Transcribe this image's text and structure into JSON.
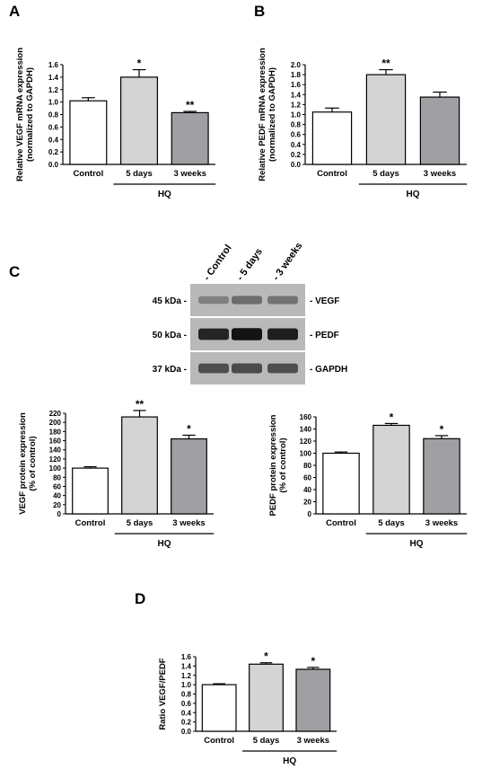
{
  "panels": {
    "A": "A",
    "B": "B",
    "C": "C",
    "D": "D"
  },
  "colors": {
    "Control": "#ffffff",
    "5 days": "#d4d4d4",
    "3 weeks": "#a0a0a4"
  },
  "chart_data": [
    {
      "id": "A",
      "type": "bar",
      "categories": [
        "Control",
        "5 days",
        "3 weeks"
      ],
      "values": [
        1.02,
        1.4,
        0.83
      ],
      "errors": [
        0.05,
        0.12,
        0.02
      ],
      "significance": [
        "",
        "*",
        "**"
      ],
      "ylabel": [
        "Relative VEGF mRNA expression",
        "(normalized to GAPDH)"
      ],
      "ylim": [
        0,
        1.6
      ],
      "yticks": [
        "0.0",
        "0.2",
        "0.4",
        "0.6",
        "0.8",
        "1.0",
        "1.2",
        "1.4",
        "1.6"
      ],
      "group_label": "HQ"
    },
    {
      "id": "B",
      "type": "bar",
      "categories": [
        "Control",
        "5 days",
        "3 weeks"
      ],
      "values": [
        1.05,
        1.8,
        1.35
      ],
      "errors": [
        0.08,
        0.1,
        0.1
      ],
      "significance": [
        "",
        "**",
        ""
      ],
      "ylabel": [
        "Relative PEDF mRNA expression",
        "(normalized to GAPDH)"
      ],
      "ylim": [
        0,
        2.0
      ],
      "yticks": [
        "0.0",
        "0.2",
        "0.4",
        "0.6",
        "0.8",
        "1.0",
        "1.2",
        "1.4",
        "1.6",
        "1.8",
        "2.0"
      ],
      "group_label": "HQ"
    },
    {
      "id": "C-VEGF",
      "type": "bar",
      "categories": [
        "Control",
        "5 days",
        "3 weeks"
      ],
      "values": [
        100,
        212,
        164
      ],
      "errors": [
        3,
        14,
        8
      ],
      "significance": [
        "",
        "**",
        "*"
      ],
      "ylabel": [
        "VEGF protein expression",
        "(% of control)"
      ],
      "ylim": [
        0,
        220
      ],
      "yticks": [
        "0",
        "20",
        "40",
        "60",
        "80",
        "100",
        "120",
        "140",
        "160",
        "180",
        "200",
        "220"
      ],
      "group_label": "HQ"
    },
    {
      "id": "C-PEDF",
      "type": "bar",
      "categories": [
        "Control",
        "5 days",
        "3 weeks"
      ],
      "values": [
        100,
        146,
        124
      ],
      "errors": [
        2,
        3,
        5
      ],
      "significance": [
        "",
        "*",
        "*"
      ],
      "ylabel": [
        "PEDF protein expression",
        "(% of control)"
      ],
      "ylim": [
        0,
        160
      ],
      "yticks": [
        "0",
        "20",
        "40",
        "60",
        "80",
        "100",
        "120",
        "140",
        "160"
      ],
      "group_label": "HQ"
    },
    {
      "id": "D",
      "type": "bar",
      "categories": [
        "Control",
        "5 days",
        "3 weeks"
      ],
      "values": [
        1.0,
        1.44,
        1.33
      ],
      "errors": [
        0.02,
        0.03,
        0.04
      ],
      "significance": [
        "",
        "*",
        "*"
      ],
      "ylabel": [
        "Ratio VEGF/PEDF"
      ],
      "ylim": [
        0,
        1.6
      ],
      "yticks": [
        "0.0",
        "0.2",
        "0.4",
        "0.6",
        "0.8",
        "1.0",
        "1.2",
        "1.4",
        "1.6"
      ],
      "group_label": "HQ"
    }
  ],
  "blot": {
    "lanes": [
      "- Control",
      "- 5 days",
      "- 3 weeks"
    ],
    "rows": [
      {
        "marker": "45 kDa -",
        "protein": "- VEGF",
        "intensity": [
          0.3,
          0.42,
          0.38
        ]
      },
      {
        "marker": "50 kDa -",
        "protein": "- PEDF",
        "intensity": [
          0.85,
          0.95,
          0.88
        ]
      },
      {
        "marker": "37 kDa -",
        "protein": "- GAPDH",
        "intensity": [
          0.6,
          0.62,
          0.6
        ]
      }
    ]
  }
}
